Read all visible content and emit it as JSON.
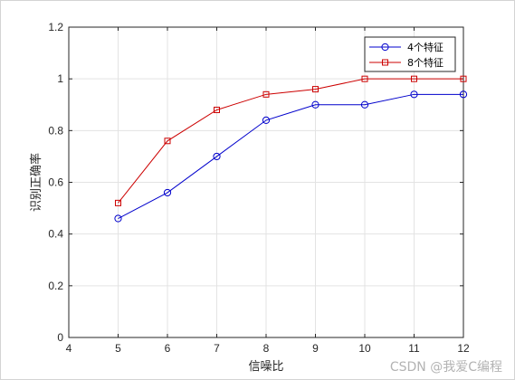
{
  "chart_data": {
    "type": "line",
    "x": [
      5,
      6,
      7,
      8,
      9,
      10,
      11,
      12
    ],
    "series": [
      {
        "name": "4个特征",
        "color": "#0000cc",
        "marker": "circle",
        "values": [
          0.46,
          0.56,
          0.7,
          0.84,
          0.9,
          0.9,
          0.94,
          0.94
        ]
      },
      {
        "name": "8个特征",
        "color": "#cc0000",
        "marker": "square",
        "values": [
          0.52,
          0.76,
          0.88,
          0.94,
          0.96,
          1.0,
          1.0,
          1.0
        ]
      }
    ],
    "xlabel": "信噪比",
    "ylabel": "识别正确率",
    "xlim": [
      4,
      12
    ],
    "ylim": [
      0,
      1.2
    ],
    "xticks": [
      4,
      5,
      6,
      7,
      8,
      9,
      10,
      11,
      12
    ],
    "yticks": [
      0,
      0.2,
      0.4,
      0.6,
      0.8,
      1,
      1.2
    ],
    "xtick_labels": [
      "4",
      "5",
      "6",
      "7",
      "8",
      "9",
      "10",
      "11",
      "12"
    ],
    "ytick_labels": [
      "0",
      "0.2",
      "0.4",
      "0.6",
      "0.8",
      "1",
      "1.2"
    ],
    "grid": true,
    "legend_position": "top-right"
  },
  "watermark": "CSDN @我爱C编程"
}
